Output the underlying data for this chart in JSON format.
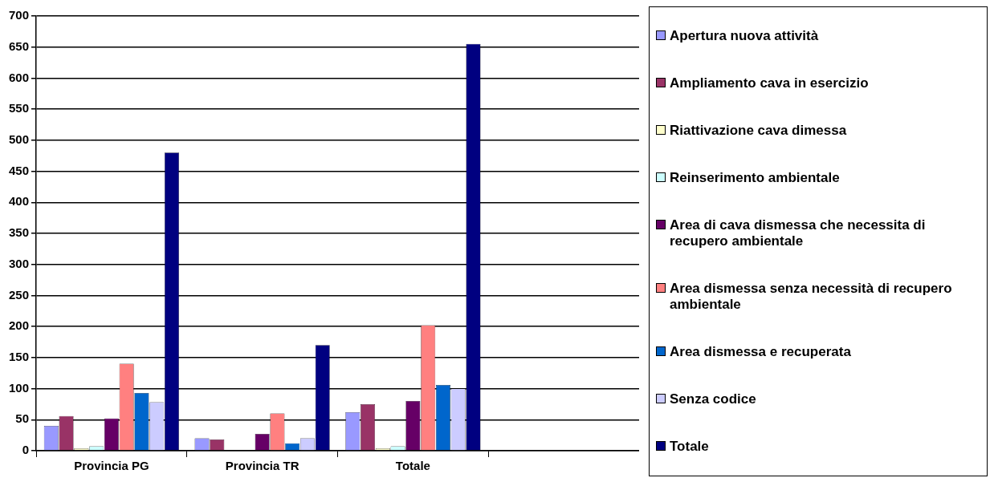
{
  "chart_data": {
    "type": "bar",
    "categories": [
      "Provincia PG",
      "Provincia TR",
      "Totale",
      null
    ],
    "series": [
      {
        "name": "Apertura nuova attività",
        "color": "#9999ff",
        "values": [
          40,
          20,
          62,
          null
        ]
      },
      {
        "name": "Ampliamento cava in esercizio",
        "color": "#993366",
        "values": [
          56,
          18,
          75,
          null
        ]
      },
      {
        "name": "Riattivazione cava dimessa",
        "color": "#ffffcc",
        "values": [
          4,
          0,
          4,
          null
        ]
      },
      {
        "name": "Reinserimento ambientale",
        "color": "#ccffff",
        "values": [
          7,
          0,
          7,
          null
        ]
      },
      {
        "name": "Area di cava dismessa che necessita di recupero ambientale",
        "color": "#660066",
        "values": [
          52,
          27,
          80,
          null
        ]
      },
      {
        "name": "Area dismessa senza necessità di recupero ambientale",
        "color": "#ff8080",
        "values": [
          140,
          60,
          202,
          null
        ]
      },
      {
        "name": "Area dismessa e recuperata",
        "color": "#0066cc",
        "values": [
          93,
          12,
          106,
          null
        ]
      },
      {
        "name": "Senza codice",
        "color": "#ccccff",
        "values": [
          78,
          20,
          100,
          null
        ]
      },
      {
        "name": "Totale",
        "color": "#000080",
        "values": [
          480,
          170,
          655,
          null
        ]
      }
    ],
    "ylim": [
      0,
      700
    ],
    "yticks": [
      0,
      50,
      100,
      150,
      200,
      250,
      300,
      350,
      400,
      450,
      500,
      550,
      600,
      650,
      700
    ],
    "grid": "y",
    "legend": "right"
  }
}
